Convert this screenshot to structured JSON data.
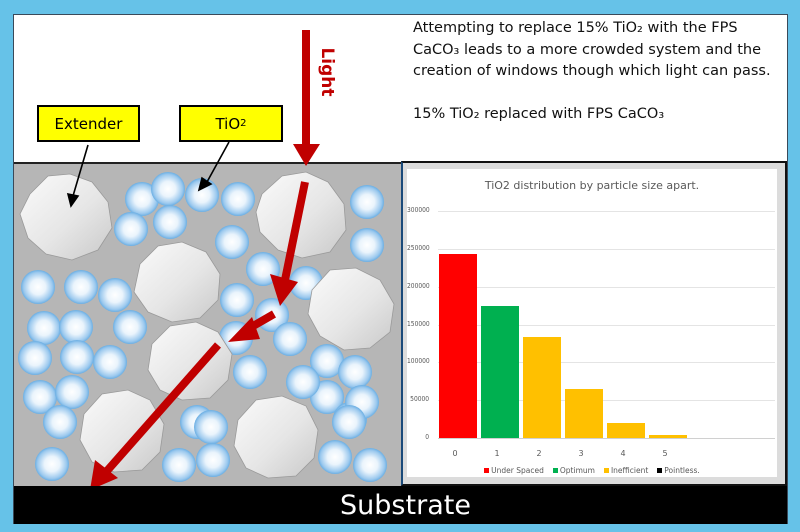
{
  "description": {
    "paragraph": "Attempting to replace 15% TiO₂ with the FPS CaCO₃ leads to a more crowded system and the creation of windows though which light can pass.",
    "caption": "15% TiO₂ replaced with FPS CaCO₃"
  },
  "labels": {
    "extender": "Extender",
    "tio2_base": "TiO",
    "tio2_sub": "2",
    "light": "Light",
    "substrate": "Substrate"
  },
  "colors": {
    "background": "#66c2e8",
    "paint_matrix": "#b6b6b6",
    "label_box": "#ffff00",
    "light_arrow": "#c00000",
    "under_spaced": "#ff0000",
    "optimum": "#00b050",
    "inefficient": "#ffc000",
    "pointless": "#000000"
  },
  "chart_data": {
    "type": "bar",
    "title": "TiO2 distribution by particle size apart.",
    "xlabel": "",
    "ylabel": "",
    "categories": [
      "0",
      "1",
      "2",
      "3",
      "4",
      "5"
    ],
    "values": [
      243000,
      174000,
      133500,
      64500,
      19500,
      3500
    ],
    "bar_categories": [
      "Under Spaced",
      "Optimum",
      "Inefficient",
      "Inefficient",
      "Inefficient",
      "Inefficient"
    ],
    "ylim": [
      0,
      300000
    ],
    "yticks": [
      "300000",
      "250000",
      "200000",
      "150000",
      "100000",
      "50000",
      "0"
    ],
    "grid": true,
    "legend_position": "bottom",
    "legend": [
      {
        "name": "Under Spaced",
        "color": "#ff0000"
      },
      {
        "name": "Optimum",
        "color": "#00b050"
      },
      {
        "name": "Inefficient",
        "color": "#ffc000"
      },
      {
        "name": "Pointless.",
        "color": "#000000"
      }
    ]
  }
}
